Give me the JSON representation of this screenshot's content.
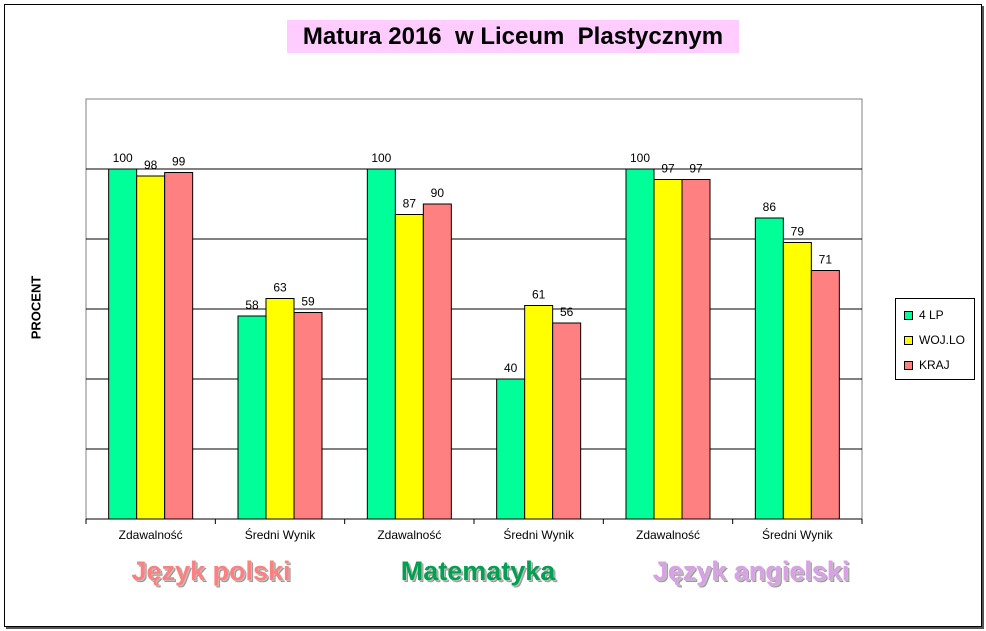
{
  "chart_data": {
    "type": "bar",
    "title": "Matura 2016  w Liceum  Plastycznym",
    "ylabel": "PROCENT",
    "xlabel": "",
    "ylim": [
      0,
      120
    ],
    "grid": true,
    "legend_position": "right",
    "categories": [
      "Zdawalność",
      "Średni Wynik",
      "Zdawalność",
      "Średni Wynik",
      "Zdawalność",
      "Średni Wynik"
    ],
    "groups": [
      "Język polski",
      "Matematyka",
      "Język angielski"
    ],
    "series": [
      {
        "name": "4 LP",
        "color": "#00ff99",
        "values": [
          100,
          58,
          100,
          40,
          100,
          86
        ]
      },
      {
        "name": "WOJ.LO",
        "color": "#ffff00",
        "values": [
          98,
          63,
          87,
          61,
          97,
          79
        ]
      },
      {
        "name": "KRAJ",
        "color": "#ff8080",
        "values": [
          99,
          59,
          90,
          56,
          97,
          71
        ]
      }
    ]
  }
}
